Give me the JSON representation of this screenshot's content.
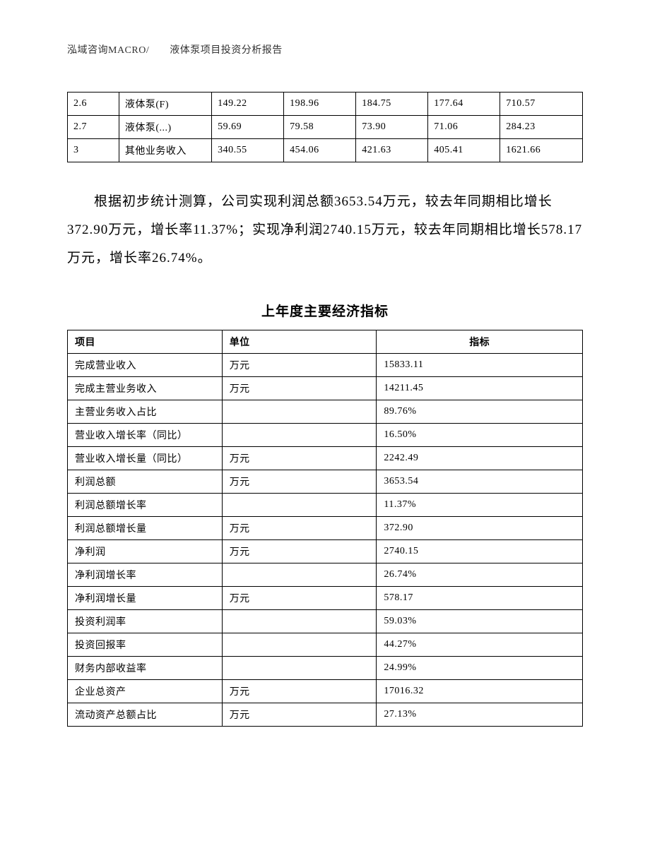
{
  "header": {
    "text": "泓域咨询MACRO/　　液体泵项目投资分析报告"
  },
  "table1": {
    "columns_count": 7,
    "col_widths_classes": [
      "col-t1-0",
      "col-t1-1",
      "col-t1-2",
      "col-t1-3",
      "col-t1-4",
      "col-t1-5",
      "col-t1-6"
    ],
    "cell_font_size": 14,
    "border_color": "#000000",
    "rows": [
      {
        "cells": [
          "2.6",
          "液体泵(F)",
          "149.22",
          "198.96",
          "184.75",
          "177.64",
          "710.57"
        ]
      },
      {
        "cells": [
          "2.7",
          "液体泵(...)",
          "59.69",
          "79.58",
          "73.90",
          "71.06",
          "284.23"
        ]
      },
      {
        "cells": [
          "3",
          "其他业务收入",
          "340.55",
          "454.06",
          "421.63",
          "405.41",
          "1621.66"
        ]
      }
    ]
  },
  "paragraph": {
    "text": "根据初步统计测算，公司实现利润总额3653.54万元，较去年同期相比增长372.90万元，增长率11.37%；实现净利润2740.15万元，较去年同期相比增长578.17万元，增长率26.74%。",
    "font_size": 19,
    "line_height": 2.1,
    "text_indent_em": 2
  },
  "section_title": {
    "text": "上年度主要经济指标",
    "font_size": 19,
    "font_weight": "bold"
  },
  "table2": {
    "border_color": "#000000",
    "header_font_weight": "bold",
    "col_widths_classes": [
      "col-t2-0",
      "col-t2-1",
      "col-t2-2"
    ],
    "headers": [
      {
        "label": "项目",
        "align": "left"
      },
      {
        "label": "单位",
        "align": "left"
      },
      {
        "label": "指标",
        "align": "center"
      }
    ],
    "rows": [
      {
        "item": "完成营业收入",
        "unit": "万元",
        "value": "15833.11"
      },
      {
        "item": "完成主营业务收入",
        "unit": "万元",
        "value": "14211.45"
      },
      {
        "item": "主营业务收入占比",
        "unit": "",
        "value": "89.76%"
      },
      {
        "item": "营业收入增长率（同比）",
        "unit": "",
        "value": "16.50%"
      },
      {
        "item": "营业收入增长量（同比）",
        "unit": "万元",
        "value": "2242.49"
      },
      {
        "item": "利润总额",
        "unit": "万元",
        "value": "3653.54"
      },
      {
        "item": "利润总额增长率",
        "unit": "",
        "value": "11.37%"
      },
      {
        "item": "利润总额增长量",
        "unit": "万元",
        "value": "372.90"
      },
      {
        "item": "净利润",
        "unit": "万元",
        "value": "2740.15"
      },
      {
        "item": "净利润增长率",
        "unit": "",
        "value": "26.74%"
      },
      {
        "item": "净利润增长量",
        "unit": "万元",
        "value": "578.17"
      },
      {
        "item": "投资利润率",
        "unit": "",
        "value": "59.03%"
      },
      {
        "item": "投资回报率",
        "unit": "",
        "value": "44.27%"
      },
      {
        "item": "财务内部收益率",
        "unit": "",
        "value": "24.99%"
      },
      {
        "item": "企业总资产",
        "unit": "万元",
        "value": "17016.32"
      },
      {
        "item": "流动资产总额占比",
        "unit": "万元",
        "value": "27.13%"
      }
    ]
  }
}
